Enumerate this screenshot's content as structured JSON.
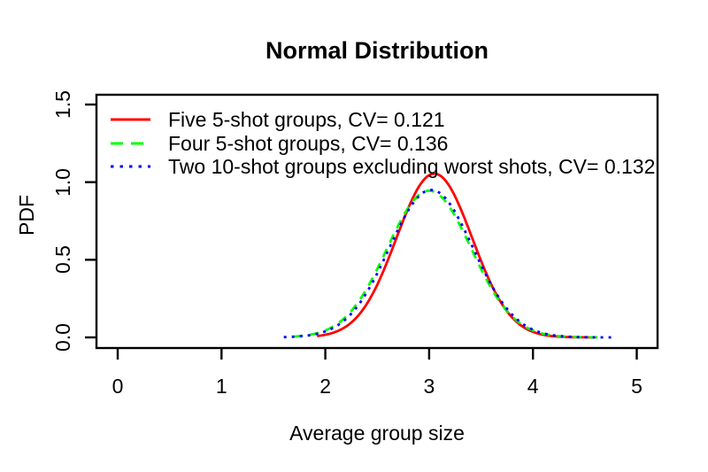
{
  "chart_data": {
    "type": "line",
    "title": "Normal Distribution",
    "xlabel": "Average group size",
    "ylabel": "PDF",
    "x_ticks": [
      "0",
      "1",
      "2",
      "3",
      "4",
      "5"
    ],
    "y_ticks": [
      "0.0",
      "0.5",
      "1.0",
      "1.5"
    ],
    "xlim": [
      0,
      5
    ],
    "ylim": [
      0,
      1.5
    ],
    "grid": false,
    "legend_position": "top-left",
    "axis_color": "#000000",
    "series": [
      {
        "name": "Five 5-shot groups, CV= 0.121",
        "cv": "0.121",
        "color": "#ff0000",
        "line_style": "solid",
        "mean": 3.05,
        "sd": 0.365,
        "peak": 1.055,
        "x_range": [
          1.92,
          4.6
        ]
      },
      {
        "name": "Four 5-shot groups, CV= 0.136",
        "cv": "0.136",
        "color": "#00ff00",
        "line_style": "dashed",
        "mean": 3.0,
        "sd": 0.405,
        "peak": 0.945,
        "x_range": [
          1.7,
          4.67
        ]
      },
      {
        "name": "Two 10-shot groups excluding worst shots, CV= 0.132",
        "cv": "0.132",
        "color": "#0000ff",
        "line_style": "dotted",
        "mean": 3.02,
        "sd": 0.403,
        "peak": 0.95,
        "x_range": [
          1.6,
          4.78
        ]
      }
    ]
  }
}
